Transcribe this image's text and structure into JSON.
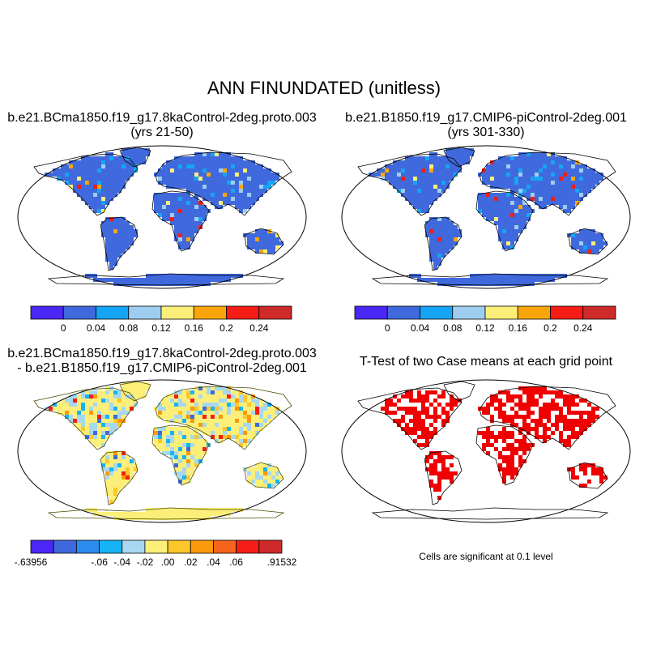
{
  "figure": {
    "title": "ANN FINUNDATED (unitless)"
  },
  "panels": [
    {
      "id": "case",
      "title_line1": "b.e21.BCma1850.f19_g17.8kaControl-2deg.proto.003",
      "title_line2": "(yrs 21-50)",
      "colorbar": {
        "colors": [
          "#4b27f5",
          "#3f69dc",
          "#16a4f4",
          "#9ecdf0",
          "#fbef7a",
          "#f9a60c",
          "#f51d16",
          "#cf2a2a"
        ],
        "tick_labels": [
          "0",
          "0.04",
          "0.08",
          "0.12",
          "0.16",
          "0.2",
          "0.24"
        ]
      }
    },
    {
      "id": "control",
      "title_line1": "b.e21.B1850.f19_g17.CMIP6-piControl-2deg.001",
      "title_line2": "(yrs 301-330)",
      "colorbar": {
        "colors": [
          "#4b27f5",
          "#3f69dc",
          "#16a4f4",
          "#9ecdf0",
          "#fbef7a",
          "#f9a60c",
          "#f51d16",
          "#cf2a2a"
        ],
        "tick_labels": [
          "0",
          "0.04",
          "0.08",
          "0.12",
          "0.16",
          "0.2",
          "0.24"
        ]
      }
    },
    {
      "id": "difference",
      "title_line1": "b.e21.BCma1850.f19_g17.8kaControl-2deg.proto.003",
      "title_line2": "- b.e21.B1850.f19_g17.CMIP6-piControl-2deg.001",
      "colorbar": {
        "colors": [
          "#4b27f5",
          "#3f69dc",
          "#2b8cf0",
          "#16b4f4",
          "#a8d8f0",
          "#fbef7a",
          "#fbc72a",
          "#f99a0c",
          "#f5641a",
          "#f51d16",
          "#cf2a2a"
        ],
        "tick_labels": [
          "-.63956",
          "-.06",
          "-.04",
          "-.02",
          ".00",
          ".02",
          ".04",
          ".06",
          ".91532"
        ]
      }
    },
    {
      "id": "ttest",
      "title_line1": "T-Test of two Case means at each grid point",
      "note": "Cells are significant at 0.1 level"
    }
  ]
}
